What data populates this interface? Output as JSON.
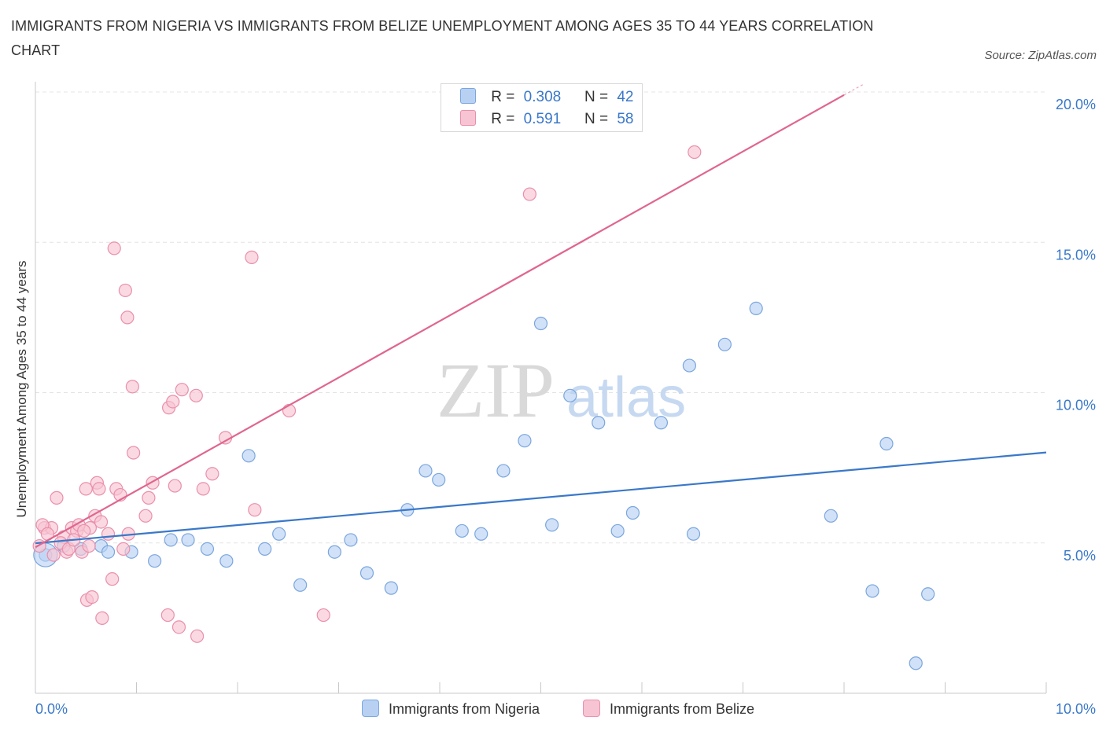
{
  "title": "IMMIGRANTS FROM NIGERIA VS IMMIGRANTS FROM BELIZE UNEMPLOYMENT AMONG AGES 35 TO 44 YEARS CORRELATION CHART",
  "source": "Source: ZipAtlas.com",
  "watermark": {
    "zip": "ZIP",
    "atlas": "atlas"
  },
  "legend": {
    "r_label": "R =",
    "n_label": "N =",
    "nigeria": {
      "r": "0.308",
      "n": "42"
    },
    "belize": {
      "r": "0.591",
      "n": "58"
    }
  },
  "colors": {
    "nigeria_fill": "#b8d1f3",
    "nigeria_stroke": "#7aa6de",
    "nigeria_line": "#3a78c9",
    "belize_fill": "#f7c4d3",
    "belize_stroke": "#ea8fab",
    "belize_line": "#e0668f",
    "axis_label": "#3a78c9"
  },
  "chart_data": {
    "type": "scatter",
    "title": "IMMIGRANTS FROM NIGERIA VS IMMIGRANTS FROM BELIZE UNEMPLOYMENT AMONG AGES 35 TO 44 YEARS CORRELATION CHART",
    "xlabel": "",
    "ylabel": "Unemployment Among Ages 35 to 44 years",
    "xlim": [
      0,
      10
    ],
    "ylim": [
      0,
      20
    ],
    "x_tick_labels": [
      {
        "value": 0,
        "label": "0.0%"
      },
      {
        "value": 10,
        "label": "10.0%"
      }
    ],
    "y_tick_labels": [
      {
        "value": 5,
        "label": "5.0%"
      },
      {
        "value": 10,
        "label": "10.0%"
      },
      {
        "value": 15,
        "label": "15.0%"
      },
      {
        "value": 20,
        "label": "20.0%"
      }
    ],
    "series": [
      {
        "name": "Immigrants from Nigeria",
        "points": [
          [
            0.1,
            4.6
          ],
          [
            0.28,
            4.9
          ],
          [
            0.45,
            4.8
          ],
          [
            0.65,
            4.9
          ],
          [
            0.72,
            4.7
          ],
          [
            0.95,
            4.7
          ],
          [
            1.18,
            4.4
          ],
          [
            1.34,
            5.1
          ],
          [
            1.51,
            5.1
          ],
          [
            1.7,
            4.8
          ],
          [
            1.89,
            4.4
          ],
          [
            2.11,
            7.9
          ],
          [
            2.27,
            4.8
          ],
          [
            2.41,
            5.3
          ],
          [
            2.62,
            3.6
          ],
          [
            2.96,
            4.7
          ],
          [
            3.12,
            5.1
          ],
          [
            3.28,
            4.0
          ],
          [
            3.52,
            3.5
          ],
          [
            3.68,
            6.1
          ],
          [
            3.86,
            7.4
          ],
          [
            3.99,
            7.1
          ],
          [
            4.22,
            5.4
          ],
          [
            4.41,
            5.3
          ],
          [
            4.63,
            7.4
          ],
          [
            4.84,
            8.4
          ],
          [
            5.0,
            12.3
          ],
          [
            5.11,
            5.6
          ],
          [
            5.29,
            9.9
          ],
          [
            5.57,
            9.0
          ],
          [
            5.76,
            5.4
          ],
          [
            5.91,
            6.0
          ],
          [
            6.19,
            9.0
          ],
          [
            6.47,
            10.9
          ],
          [
            6.51,
            5.3
          ],
          [
            6.82,
            11.6
          ],
          [
            7.13,
            12.8
          ],
          [
            7.87,
            5.9
          ],
          [
            8.28,
            3.4
          ],
          [
            8.42,
            8.3
          ],
          [
            8.71,
            1.0
          ],
          [
            8.83,
            3.3
          ]
        ],
        "trend": {
          "x0": 0,
          "y0": 4.99,
          "x1": 10,
          "y1": 8.01
        }
      },
      {
        "name": "Immigrants from Belize",
        "points": [
          [
            0.04,
            4.9
          ],
          [
            0.09,
            5.5
          ],
          [
            0.16,
            5.5
          ],
          [
            0.21,
            6.5
          ],
          [
            0.28,
            5.2
          ],
          [
            0.31,
            4.7
          ],
          [
            0.36,
            5.5
          ],
          [
            0.41,
            5.4
          ],
          [
            0.46,
            4.7
          ],
          [
            0.5,
            6.8
          ],
          [
            0.51,
            3.1
          ],
          [
            0.54,
            5.5
          ],
          [
            0.56,
            3.2
          ],
          [
            0.59,
            5.9
          ],
          [
            0.61,
            7.0
          ],
          [
            0.63,
            6.8
          ],
          [
            0.65,
            5.7
          ],
          [
            0.66,
            2.5
          ],
          [
            0.72,
            5.3
          ],
          [
            0.76,
            3.8
          ],
          [
            0.78,
            14.8
          ],
          [
            0.8,
            6.8
          ],
          [
            0.84,
            6.6
          ],
          [
            0.87,
            4.8
          ],
          [
            0.89,
            13.4
          ],
          [
            0.91,
            12.5
          ],
          [
            0.92,
            5.3
          ],
          [
            0.96,
            10.2
          ],
          [
            0.97,
            8.0
          ],
          [
            1.09,
            5.9
          ],
          [
            1.12,
            6.5
          ],
          [
            1.16,
            7.0
          ],
          [
            1.31,
            2.6
          ],
          [
            1.32,
            9.5
          ],
          [
            1.36,
            9.7
          ],
          [
            1.38,
            6.9
          ],
          [
            1.42,
            2.2
          ],
          [
            1.45,
            10.1
          ],
          [
            1.59,
            9.9
          ],
          [
            1.6,
            1.9
          ],
          [
            1.66,
            6.8
          ],
          [
            1.75,
            7.3
          ],
          [
            1.88,
            8.5
          ],
          [
            2.14,
            14.5
          ],
          [
            2.17,
            6.1
          ],
          [
            2.51,
            9.4
          ],
          [
            2.85,
            2.6
          ],
          [
            4.89,
            16.6
          ],
          [
            6.52,
            18.0
          ],
          [
            0.07,
            5.6
          ],
          [
            0.12,
            5.3
          ],
          [
            0.18,
            4.6
          ],
          [
            0.25,
            5.0
          ],
          [
            0.33,
            4.8
          ],
          [
            0.38,
            5.1
          ],
          [
            0.43,
            5.6
          ],
          [
            0.48,
            5.4
          ],
          [
            0.53,
            4.9
          ]
        ],
        "trend": {
          "x0": 0,
          "y0": 4.86,
          "x1": 8.0,
          "y1": 19.9
        }
      }
    ],
    "legend_position": "top-center",
    "grid": true
  },
  "bottom_legend": {
    "nigeria": "Immigrants from Nigeria",
    "belize": "Immigrants from Belize"
  }
}
